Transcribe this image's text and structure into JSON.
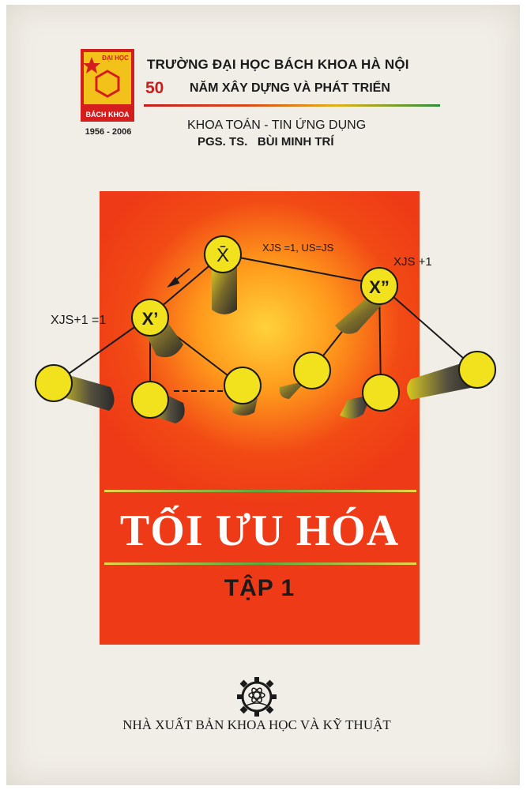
{
  "header": {
    "logo_text_top": "ĐẠI HỌC",
    "logo_text_bottom": "BÁCH KHOA",
    "logo_years": "1956 - 2006",
    "university": "TRƯỜNG ĐẠI HỌC BÁCH KHOA HÀ NỘI",
    "anniversary_number": "50",
    "anniversary_text": "NĂM XÂY DỰNG VÀ PHÁT TRIỂN",
    "faculty": "KHOA TOÁN - TIN ỨNG DỤNG",
    "author_title": "PGS. TS.",
    "author_name": "BÙI MINH TRÍ"
  },
  "diagram": {
    "root_label": "X̄",
    "left_label": "X’",
    "right_label": "X”",
    "top_edge_label": "XJS =1, US=JS",
    "right_edge_label": "XJS +1",
    "left_edge_label": "XJS+1 =1"
  },
  "cover": {
    "title": "TỐI ƯU HÓA",
    "volume": "TẬP 1"
  },
  "footer": {
    "publisher": "NHÀ XUẤT BẢN KHOA HỌC VÀ KỸ THUẬT"
  },
  "colors": {
    "red": "#ee3a16",
    "yellow": "#f2e21e",
    "brand_red": "#c91c1c"
  }
}
